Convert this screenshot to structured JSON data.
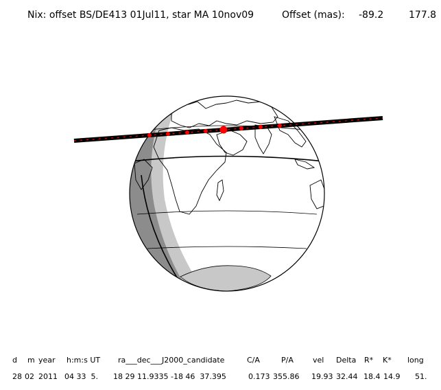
{
  "header": {
    "title": "Nix: offset BS/DE413 01Jul11, star MA 10nov09",
    "offset_label": "Offset (mas):",
    "offset_values": [
      "-89.2",
      "177.8"
    ]
  },
  "table": {
    "columns": [
      "d",
      "m",
      "year",
      "h:m:s UT",
      "ra___dec___J2000_candidate",
      "C/A",
      "P/A",
      "vel",
      "Delta",
      "R*",
      "K*",
      "long"
    ],
    "row": [
      "28",
      "02",
      "2011",
      "04 33  5.",
      "18 29 11.9335 -18 46  37.395",
      "0.173",
      "355.86",
      "19.93",
      "32.44",
      "18.4",
      "14.9",
      "51."
    ]
  },
  "map": {
    "colors": {
      "ocean": "#ffffff",
      "night": "#8c8c8c",
      "twilight": "#c8c8c8",
      "track": "#000000",
      "track_dots": "#ff0000",
      "grid": "#000000"
    },
    "markers": [
      "center-point",
      "track-dots"
    ]
  }
}
